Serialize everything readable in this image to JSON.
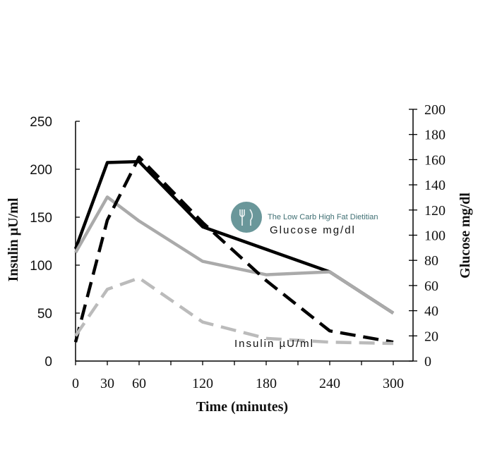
{
  "chart_data": {
    "type": "line",
    "xlabel": "Time (minutes)",
    "ylabel_left": "Insulin µU/ml",
    "ylabel_right": "Glucose mg/dl",
    "x_ticks": [
      0,
      30,
      60,
      120,
      180,
      240,
      300
    ],
    "xlim": [
      0,
      300
    ],
    "ylim_left": [
      0,
      250
    ],
    "ylim_right": [
      0,
      200
    ],
    "left_ticks": [
      0,
      50,
      100,
      150,
      200,
      250
    ],
    "right_ticks": [
      0,
      20,
      40,
      60,
      80,
      100,
      120,
      140,
      160,
      180,
      200
    ],
    "grid": false,
    "annotations": {
      "glucose_label": "Glucose mg/dl",
      "insulin_label": "Insulin µU/ml"
    },
    "series": [
      {
        "axis": "left",
        "style": "solid",
        "color": "#000000",
        "x": [
          0,
          30,
          60,
          120,
          240,
          300
        ],
        "values": [
          117,
          207,
          208,
          140,
          93,
          50
        ]
      },
      {
        "axis": "left",
        "style": "solid",
        "color": "#aaaaaa",
        "x": [
          0,
          30,
          60,
          120,
          180,
          240,
          300
        ],
        "values": [
          113,
          171,
          146,
          104,
          90,
          93,
          50
        ]
      },
      {
        "axis": "right",
        "style": "dashed",
        "color": "#000000",
        "x": [
          0,
          30,
          60,
          120,
          180,
          240,
          300
        ],
        "values": [
          15,
          112,
          162,
          110,
          64,
          24,
          15
        ]
      },
      {
        "axis": "right",
        "style": "dashed",
        "color": "#bbbbbb",
        "x": [
          0,
          30,
          60,
          120,
          180,
          240,
          300
        ],
        "values": [
          20,
          57,
          66,
          31,
          18,
          15,
          14
        ]
      }
    ]
  },
  "watermark": {
    "text": "The Low Carb High Fat Dietitian",
    "icon": "fork-knife-icon",
    "color": "#5a8c8f"
  }
}
